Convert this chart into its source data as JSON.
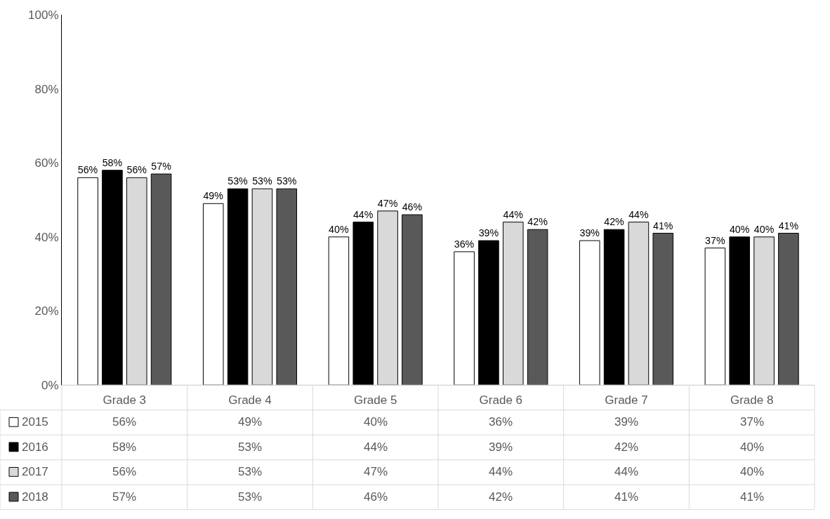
{
  "chart_data": {
    "type": "bar",
    "categories": [
      "Grade 3",
      "Grade 4",
      "Grade 5",
      "Grade 6",
      "Grade 7",
      "Grade 8"
    ],
    "series": [
      {
        "name": "2015",
        "color": "#ffffff",
        "values": [
          56,
          49,
          40,
          36,
          39,
          37
        ],
        "value_labels": [
          "56%",
          "49%",
          "40%",
          "36%",
          "39%",
          "37%"
        ]
      },
      {
        "name": "2016",
        "color": "#000000",
        "values": [
          58,
          53,
          44,
          39,
          42,
          40
        ],
        "value_labels": [
          "58%",
          "53%",
          "44%",
          "39%",
          "42%",
          "40%"
        ]
      },
      {
        "name": "2017",
        "color": "#d9d9d9",
        "values": [
          56,
          53,
          47,
          44,
          44,
          40
        ],
        "value_labels": [
          "56%",
          "53%",
          "47%",
          "44%",
          "44%",
          "40%"
        ]
      },
      {
        "name": "2018",
        "color": "#595959",
        "values": [
          57,
          53,
          46,
          42,
          41,
          41
        ],
        "value_labels": [
          "57%",
          "53%",
          "46%",
          "42%",
          "41%",
          "41%"
        ]
      }
    ],
    "ylim": [
      0,
      100
    ],
    "yticks": [
      {
        "value": 0,
        "label": "0%"
      },
      {
        "value": 20,
        "label": "20%"
      },
      {
        "value": 40,
        "label": "40%"
      },
      {
        "value": 60,
        "label": "60%"
      },
      {
        "value": 80,
        "label": "80%"
      },
      {
        "value": 100,
        "label": "100%"
      }
    ],
    "legend": "bottom"
  }
}
